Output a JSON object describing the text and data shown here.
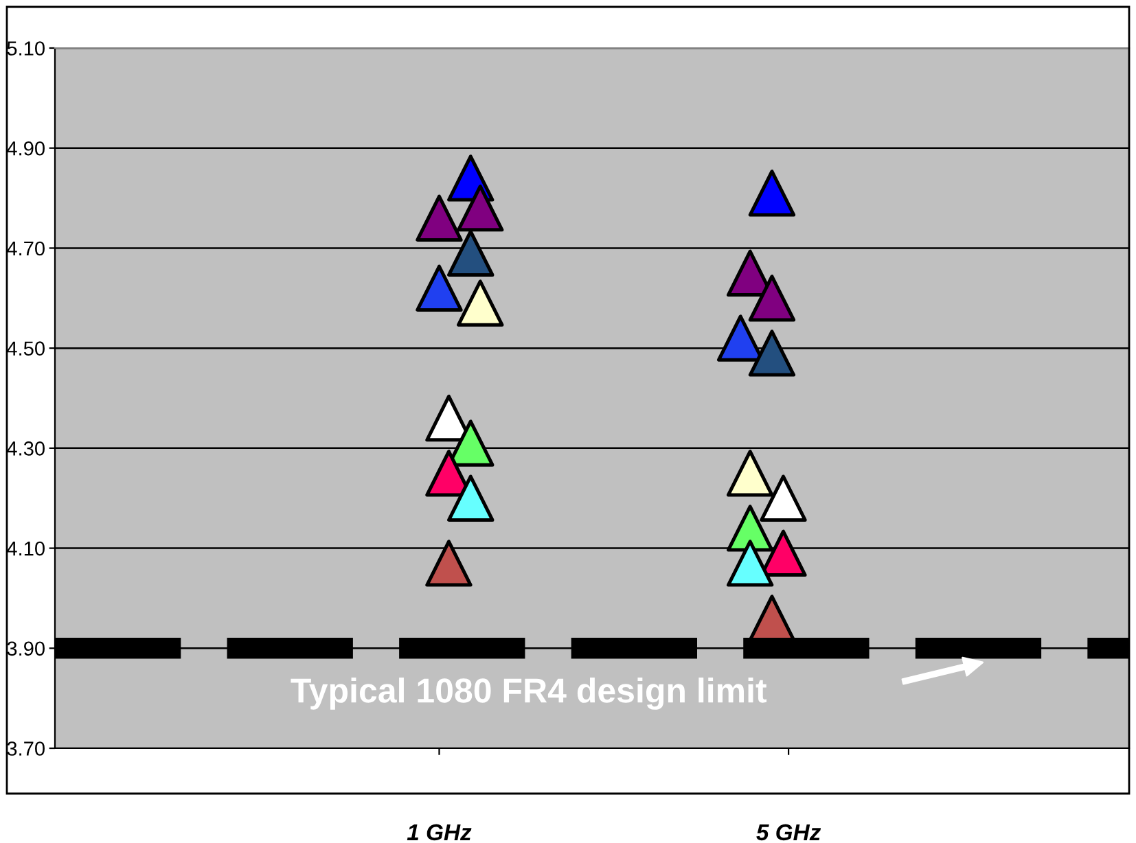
{
  "chart_data": {
    "type": "scatter",
    "marker": "triangle",
    "grid": "y",
    "legend": false,
    "xlim": [
      -3.4,
      8.9
    ],
    "xticks": [
      {
        "value": 1,
        "label": "1 GHz"
      },
      {
        "value": 5,
        "label": "5 GHz"
      }
    ],
    "ylim": [
      3.7,
      5.1
    ],
    "yticks": [
      {
        "value": 3.7,
        "label": "3.70"
      },
      {
        "value": 3.9,
        "label": "3.90"
      },
      {
        "value": 4.1,
        "label": "4.10"
      },
      {
        "value": 4.3,
        "label": "4.30"
      },
      {
        "value": 4.5,
        "label": "4.50"
      },
      {
        "value": 4.7,
        "label": "4.70"
      },
      {
        "value": 4.9,
        "label": "4.90"
      },
      {
        "value": 5.1,
        "label": "5.10"
      }
    ],
    "series": [
      {
        "x": [
          1.36,
          1.0,
          1.47,
          1.36,
          1.0,
          1.47,
          1.11,
          1.36,
          1.11,
          1.36,
          1.11
        ],
        "values": [
          4.84,
          4.76,
          4.78,
          4.69,
          4.62,
          4.59,
          4.36,
          4.31,
          4.25,
          4.2,
          4.07
        ],
        "colors": [
          "#0000ff",
          "#800080",
          "#800080",
          "#234f7f",
          "#2040f0",
          "#ffffcc",
          "#ffffff",
          "#66ff66",
          "#ff0066",
          "#66ffff",
          "#c0504d"
        ]
      },
      {
        "x": [
          4.81,
          4.56,
          4.81,
          4.45,
          4.81,
          4.56,
          4.94,
          4.56,
          4.94,
          4.56,
          4.81
        ],
        "values": [
          4.81,
          4.65,
          4.6,
          4.52,
          4.49,
          4.25,
          4.2,
          4.14,
          4.09,
          4.07,
          3.96
        ],
        "colors": [
          "#0000ff",
          "#800080",
          "#800080",
          "#2040f0",
          "#234f7f",
          "#ffffcc",
          "#ffffff",
          "#66ff66",
          "#ff0066",
          "#66ffff",
          "#c0504d"
        ]
      }
    ],
    "ref_lines": [
      {
        "axis": "y",
        "value": 3.9,
        "color": "#000000",
        "line_style": "dashed"
      }
    ],
    "annotations": [
      "Typical 1080 FR4 design limit"
    ]
  }
}
